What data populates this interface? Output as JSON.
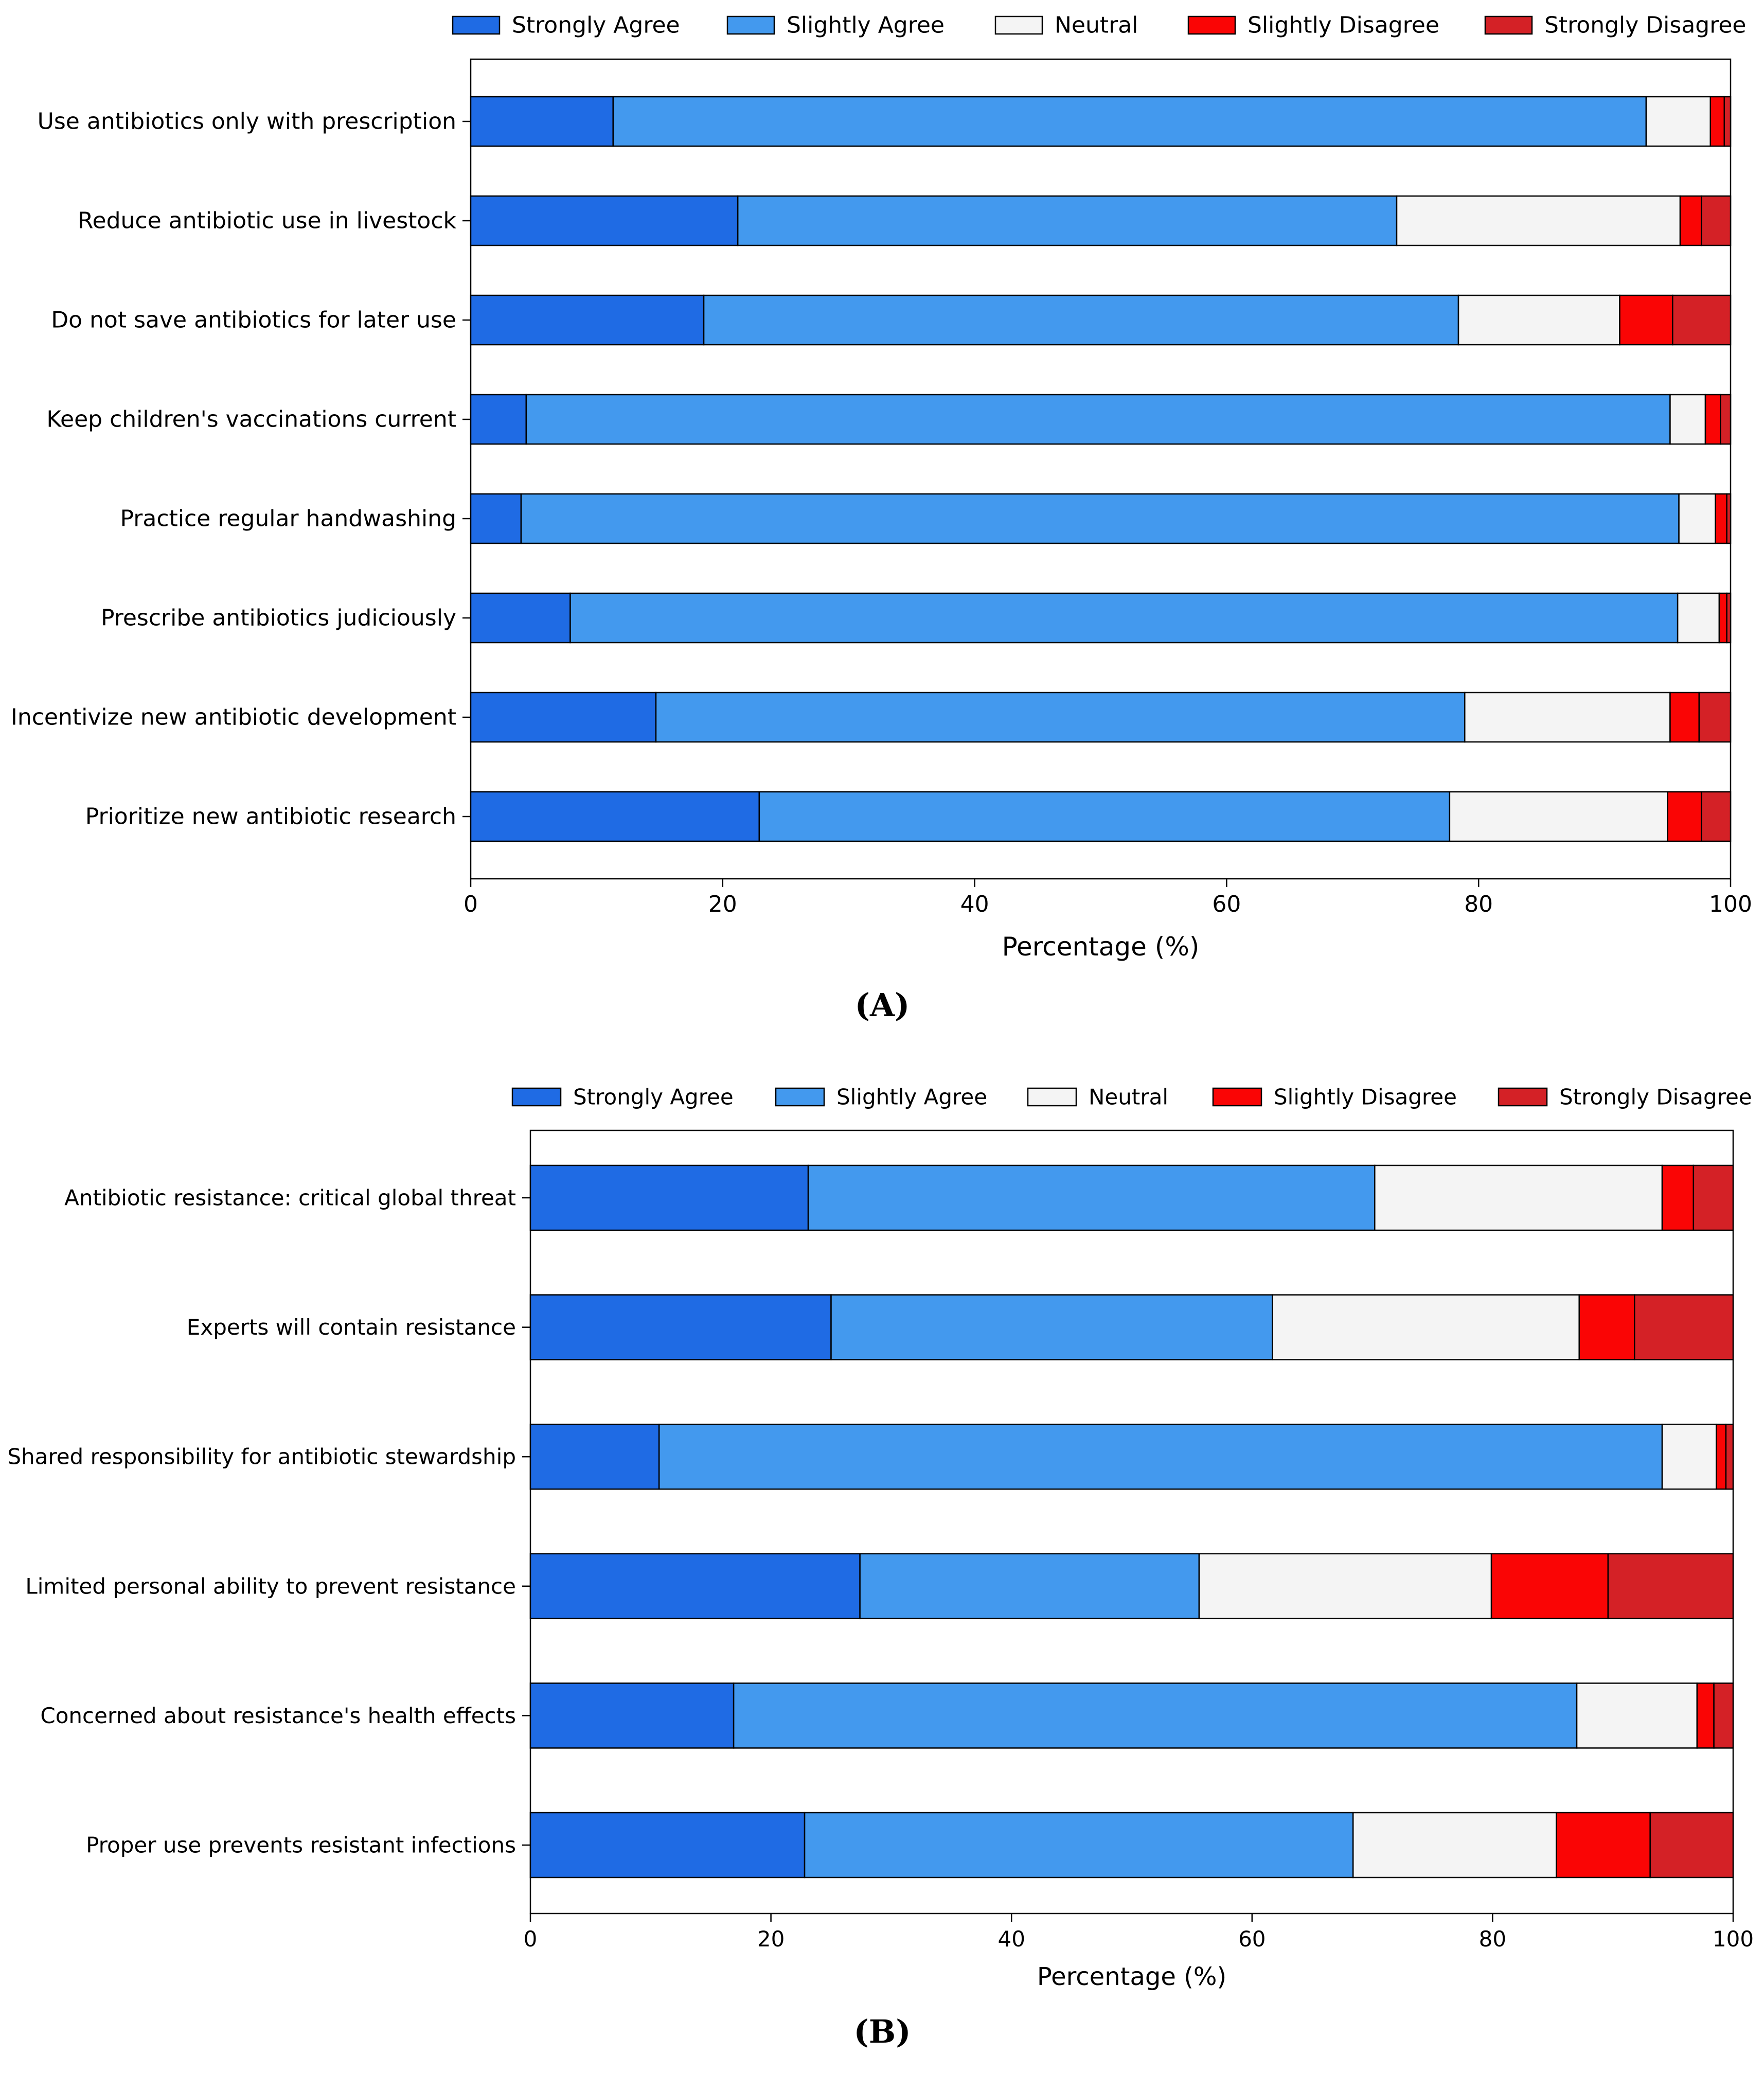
{
  "colors": {
    "strongly_agree": "#1f6be4",
    "slightly_agree": "#4399ee",
    "neutral": "#f4f4f4",
    "slightly_disagree": "#fa0505",
    "strongly_disagree": "#d42126"
  },
  "chart_data": [
    {
      "type": "bar",
      "orientation": "horizontal",
      "stacked": true,
      "panel_label": "(A)",
      "title": "",
      "xlabel": "Percentage (%)",
      "ylabel": "",
      "xlim": [
        0,
        100
      ],
      "xticks": [
        "0",
        "20",
        "40",
        "60",
        "80",
        "100"
      ],
      "legend": [
        "Strongly Agree",
        "Slightly Agree",
        "Neutral",
        "Slightly Disagree",
        "Strongly Disagree"
      ],
      "legend_position": "top",
      "categories": [
        "Use antibiotics only with prescription",
        "Reduce antibiotic use in livestock",
        "Do not save antibiotics for later use",
        "Keep children's vaccinations current",
        "Practice regular handwashing",
        "Prescribe antibiotics judiciously",
        "Incentivize new antibiotic development",
        "Prioritize new antibiotic research"
      ],
      "series": [
        {
          "name": "Strongly Agree",
          "values": [
            11.3,
            21.2,
            18.5,
            4.4,
            4.0,
            7.9,
            14.7,
            22.9
          ]
        },
        {
          "name": "Slightly Agree",
          "values": [
            82.0,
            52.3,
            59.9,
            90.8,
            91.9,
            87.9,
            64.2,
            54.8
          ]
        },
        {
          "name": "Neutral",
          "values": [
            5.1,
            22.5,
            12.8,
            2.8,
            2.9,
            3.3,
            16.3,
            17.3
          ]
        },
        {
          "name": "Slightly Disagree",
          "values": [
            1.1,
            1.7,
            4.2,
            1.2,
            0.9,
            0.6,
            2.3,
            2.7
          ]
        },
        {
          "name": "Strongly Disagree",
          "values": [
            0.5,
            2.3,
            4.6,
            0.8,
            0.3,
            0.3,
            2.5,
            2.3
          ]
        }
      ]
    },
    {
      "type": "bar",
      "orientation": "horizontal",
      "stacked": true,
      "panel_label": "(B)",
      "title": "",
      "xlabel": "Percentage (%)",
      "ylabel": "",
      "xlim": [
        0,
        100
      ],
      "xticks": [
        "0",
        "20",
        "40",
        "60",
        "80",
        "100"
      ],
      "legend": [
        "Strongly Agree",
        "Slightly Agree",
        "Neutral",
        "Slightly Disagree",
        "Strongly Disagree"
      ],
      "legend_position": "top",
      "categories": [
        "Antibiotic resistance: critical global threat",
        "Experts will contain resistance",
        "Shared responsibility for antibiotic stewardship",
        "Limited personal ability to prevent resistance",
        "Concerned about resistance's health effects",
        "Proper use prevents resistant infections"
      ],
      "series": [
        {
          "name": "Strongly Agree",
          "values": [
            23.1,
            25.0,
            10.7,
            27.4,
            16.9,
            22.8
          ]
        },
        {
          "name": "Slightly Agree",
          "values": [
            47.1,
            36.7,
            83.4,
            28.2,
            70.1,
            45.6
          ]
        },
        {
          "name": "Neutral",
          "values": [
            23.9,
            25.5,
            4.5,
            24.3,
            10.0,
            16.9
          ]
        },
        {
          "name": "Slightly Disagree",
          "values": [
            2.6,
            4.6,
            0.8,
            9.7,
            1.4,
            7.8
          ]
        },
        {
          "name": "Strongly Disagree",
          "values": [
            3.3,
            8.2,
            0.6,
            10.4,
            1.6,
            6.9
          ]
        }
      ]
    }
  ]
}
